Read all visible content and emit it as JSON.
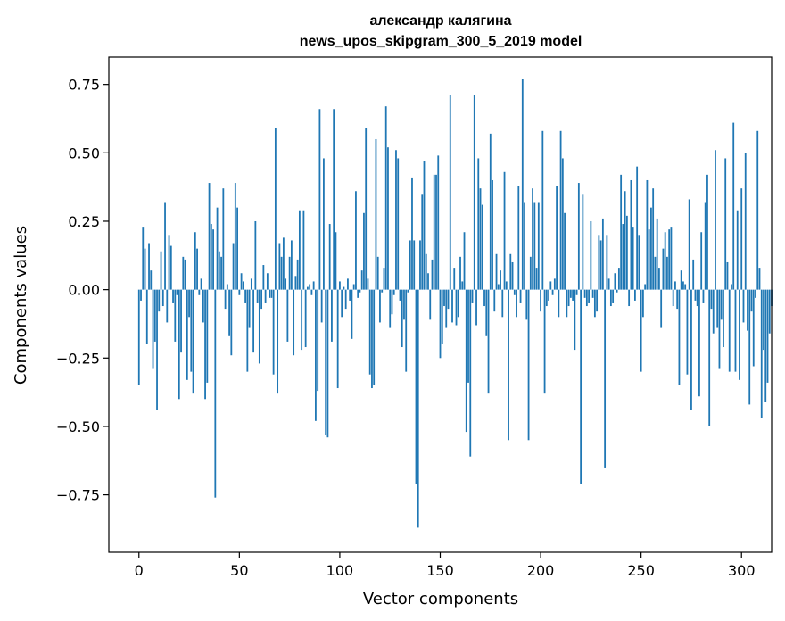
{
  "chart_data": {
    "type": "bar",
    "title_line1": "александр калягина",
    "title_line2": "news_upos_skipgram_300_5_2019 model",
    "xlabel": "Vector components",
    "ylabel": "Components values",
    "xlim": [
      -15,
      315
    ],
    "ylim": [
      -0.96,
      0.85
    ],
    "xticks": [
      0,
      50,
      100,
      150,
      200,
      250,
      300
    ],
    "xtick_labels": [
      "0",
      "50",
      "100",
      "150",
      "200",
      "250",
      "300"
    ],
    "yticks": [
      -0.75,
      -0.5,
      -0.25,
      0.0,
      0.25,
      0.5,
      0.75
    ],
    "ytick_labels": [
      "−0.75",
      "−0.50",
      "−0.25",
      "0.00",
      "0.25",
      "0.50",
      "0.75"
    ],
    "bar_color": "#1f77b4",
    "grid": false,
    "values": [
      -0.35,
      -0.04,
      0.23,
      0.15,
      -0.2,
      0.17,
      0.07,
      -0.29,
      -0.19,
      -0.44,
      -0.08,
      0.14,
      -0.06,
      0.32,
      -0.12,
      0.2,
      0.16,
      -0.05,
      -0.19,
      -0.02,
      -0.4,
      -0.23,
      0.12,
      0.11,
      -0.33,
      -0.1,
      -0.3,
      -0.38,
      0.21,
      0.15,
      -0.02,
      0.04,
      -0.12,
      -0.4,
      -0.34,
      0.39,
      0.24,
      0.22,
      -0.76,
      0.3,
      0.14,
      0.12,
      0.37,
      -0.07,
      0.02,
      -0.17,
      -0.24,
      0.17,
      0.39,
      0.3,
      -0.02,
      0.06,
      0.03,
      -0.05,
      -0.3,
      -0.14,
      0.04,
      -0.23,
      0.25,
      -0.05,
      -0.27,
      -0.07,
      0.09,
      -0.05,
      0.06,
      -0.03,
      -0.03,
      -0.31,
      0.59,
      -0.38,
      0.17,
      0.12,
      0.19,
      0.04,
      -0.19,
      0.12,
      0.18,
      -0.24,
      0.05,
      0.11,
      0.29,
      -0.22,
      0.29,
      -0.21,
      0.01,
      0.02,
      -0.02,
      0.03,
      -0.48,
      -0.37,
      0.66,
      -0.12,
      0.48,
      -0.53,
      -0.54,
      0.24,
      -0.19,
      0.66,
      0.21,
      -0.36,
      0.03,
      -0.1,
      0.01,
      -0.07,
      0.04,
      -0.04,
      -0.18,
      0.02,
      0.36,
      -0.03,
      -0.01,
      0.07,
      0.28,
      0.59,
      0.04,
      -0.31,
      -0.36,
      -0.35,
      0.55,
      0.12,
      -0.12,
      -0.01,
      0.08,
      0.67,
      0.52,
      -0.14,
      -0.09,
      -0.02,
      0.51,
      0.48,
      -0.04,
      -0.21,
      -0.11,
      -0.3,
      -0.01,
      0.18,
      0.41,
      0.18,
      -0.71,
      -0.87,
      0.18,
      0.35,
      0.47,
      0.13,
      0.06,
      -0.11,
      0.11,
      0.42,
      0.42,
      0.49,
      -0.25,
      -0.2,
      -0.06,
      -0.14,
      -0.07,
      0.71,
      -0.12,
      0.08,
      -0.13,
      -0.1,
      0.12,
      0.03,
      0.21,
      -0.52,
      -0.34,
      -0.61,
      -0.05,
      0.71,
      -0.13,
      0.48,
      0.37,
      0.31,
      -0.06,
      -0.17,
      -0.38,
      0.57,
      0.4,
      -0.08,
      0.13,
      0.02,
      0.07,
      -0.1,
      0.43,
      0.03,
      -0.55,
      0.13,
      0.1,
      -0.02,
      -0.1,
      0.38,
      -0.05,
      0.77,
      0.32,
      -0.11,
      -0.55,
      0.12,
      0.37,
      0.32,
      0.08,
      0.32,
      -0.08,
      0.58,
      -0.38,
      -0.06,
      -0.04,
      0.03,
      -0.02,
      0.04,
      0.38,
      -0.1,
      0.58,
      0.48,
      0.28,
      -0.1,
      -0.06,
      -0.03,
      -0.04,
      -0.22,
      -0.02,
      0.39,
      -0.71,
      0.35,
      -0.03,
      -0.06,
      -0.05,
      0.25,
      -0.03,
      -0.1,
      -0.08,
      0.2,
      0.18,
      0.26,
      -0.65,
      0.2,
      0.04,
      -0.06,
      -0.05,
      0.06,
      -0.01,
      0.08,
      0.42,
      0.24,
      0.36,
      0.27,
      -0.06,
      0.4,
      0.23,
      -0.04,
      0.45,
      0.2,
      -0.3,
      -0.1,
      0.02,
      0.4,
      0.22,
      0.3,
      0.37,
      0.12,
      0.26,
      0.08,
      -0.14,
      0.15,
      0.21,
      0.12,
      0.22,
      0.23,
      -0.06,
      0.03,
      -0.07,
      -0.35,
      0.07,
      0.03,
      0.02,
      -0.31,
      0.33,
      -0.44,
      0.11,
      -0.04,
      -0.06,
      -0.39,
      0.21,
      -0.05,
      0.32,
      0.42,
      -0.5,
      -0.07,
      -0.16,
      0.51,
      -0.14,
      -0.29,
      -0.11,
      -0.21,
      0.48,
      0.1,
      -0.3,
      0.02,
      0.61,
      -0.3,
      0.29,
      -0.33,
      0.37,
      -0.12,
      0.5,
      -0.15,
      -0.42,
      -0.08,
      -0.28,
      -0.03,
      0.58,
      0.08,
      -0.47,
      -0.22,
      -0.41,
      -0.34,
      -0.16,
      -0.06
    ]
  }
}
